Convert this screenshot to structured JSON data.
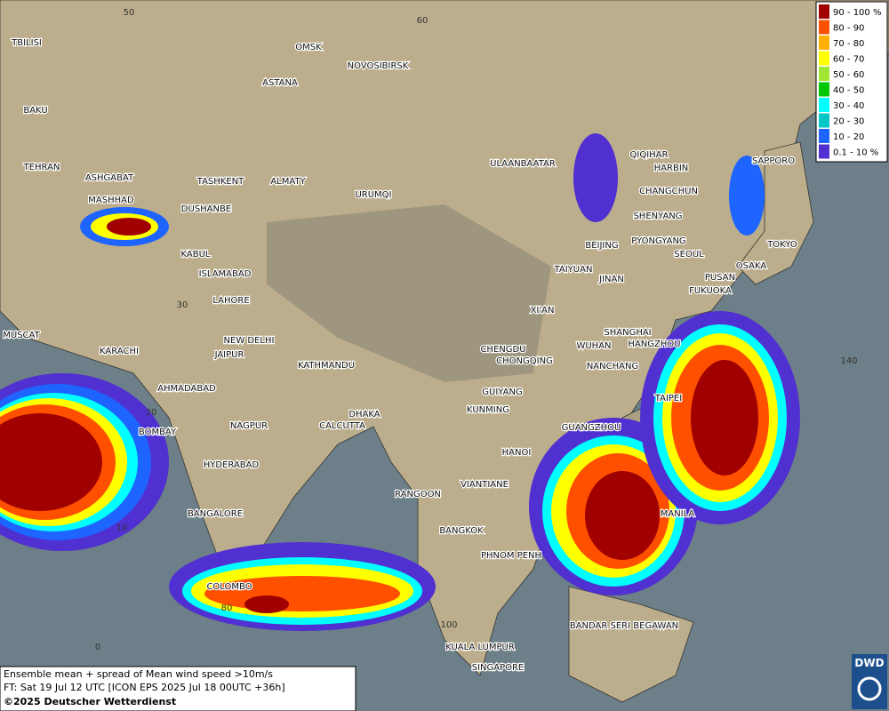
{
  "map": {
    "legend": [
      {
        "label": "90 - 100 %",
        "color": "#a00000"
      },
      {
        "label": "80 - 90",
        "color": "#ff5000"
      },
      {
        "label": "70 - 80",
        "color": "#ffb000"
      },
      {
        "label": "60 - 70",
        "color": "#ffff00"
      },
      {
        "label": "50 - 60",
        "color": "#a0e632"
      },
      {
        "label": "40 - 50",
        "color": "#00c800"
      },
      {
        "label": "30 - 40",
        "color": "#00ffff"
      },
      {
        "label": "20 - 30",
        "color": "#00c8c8"
      },
      {
        "label": "10 - 20",
        "color": "#1e64ff"
      },
      {
        "label": "0.1 - 10 %",
        "color": "#5030d0"
      }
    ],
    "cities": [
      "OMSK",
      "NOVOSIBIRSK",
      "ASTANA",
      "TBILISI",
      "BAKU",
      "TEHRAN",
      "ASHGABAT",
      "MASHHAD",
      "TASHKENT",
      "ALMATY",
      "DUSHANBE",
      "URUMQI",
      "ULAANBAATAR",
      "QIQIHAR",
      "HARBIN",
      "CHANGCHUN",
      "SHENYANG",
      "BEIJING",
      "PYONGYANG",
      "SEOUL",
      "TOKYO",
      "SAPPORO",
      "OSAKA",
      "PUSAN",
      "FUKUOKA",
      "TAIYUAN",
      "JINAN",
      "XI'AN",
      "KABUL",
      "ISLAMABAD",
      "LAHORE",
      "NEW DELHI",
      "JAIPUR",
      "KATHMANDU",
      "MUSCAT",
      "KARACHI",
      "AHMADABAD",
      "CHENGDU",
      "CHONGQING",
      "WUHAN",
      "SHANGHAI",
      "HANGZHOU",
      "NANCHANG",
      "GUIYANG",
      "KUNMING",
      "TAIPEI",
      "GUANGZHOU",
      "BOMBAY",
      "NAGPUR",
      "CALCUTTA",
      "DHAKA",
      "HYDERABAD",
      "HANOI",
      "RANGOON",
      "VIANTIANE",
      "BANGALORE",
      "MANILA",
      "BANGKOK",
      "PHNOM PENH",
      "COLOMBO",
      "BANDAR SERI BEGAWAN",
      "KUALA LUMPUR",
      "SINGAPORE"
    ],
    "grid_labels": [
      "50",
      "60",
      "30",
      "20",
      "10",
      "0",
      "80",
      "140",
      "100"
    ],
    "footer": [
      "Ensemble mean + spread of Mean wind speed >10m/s",
      "FT: Sat 19 Jul 12 UTC [ICON EPS 2025 Jul 18 00UTC +36h]",
      "©2025 Deutscher Wetterdienst"
    ],
    "logo": "DWD"
  }
}
